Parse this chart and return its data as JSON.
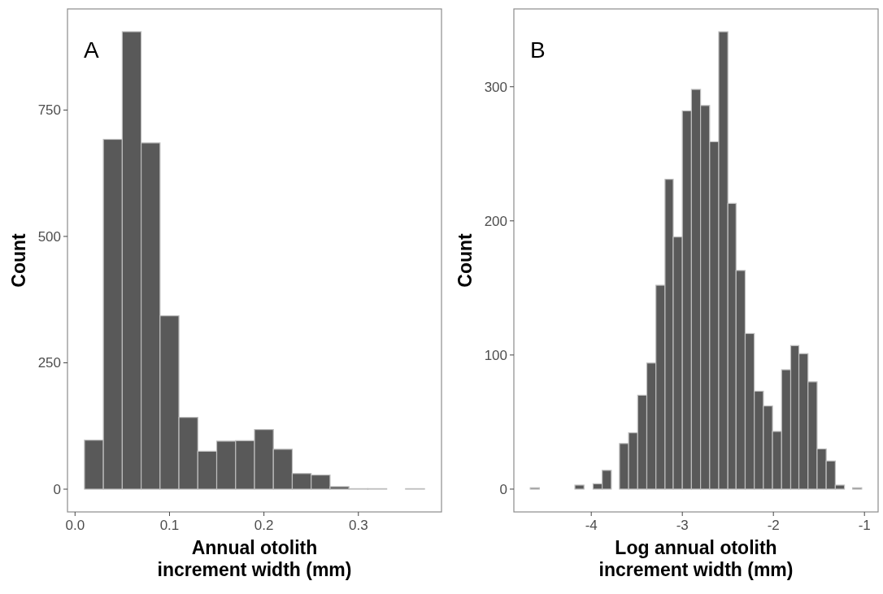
{
  "chart_data": [
    {
      "type": "histogram",
      "ylabel": "Count",
      "xlabel": "Annual otolith\nincrement width (mm)",
      "annotations": [
        "A"
      ],
      "color": "#595959",
      "grid": false,
      "bins": [
        0.01,
        0.03,
        0.05,
        0.07,
        0.09,
        0.11,
        0.13,
        0.15,
        0.17,
        0.19,
        0.21,
        0.23,
        0.25,
        0.27,
        0.29,
        0.31,
        0.33,
        0.35,
        0.37
      ],
      "values": [
        97,
        692,
        905,
        685,
        343,
        142,
        75,
        95,
        96,
        118,
        79,
        31,
        28,
        5,
        1,
        1,
        0,
        1
      ],
      "xlim": [
        -0.008,
        0.388
      ],
      "ylim": [
        -45,
        950
      ],
      "xticks": [
        {
          "value": 0,
          "label": "0.0"
        },
        0.1,
        0.2,
        0.3
      ],
      "yticks": [
        0,
        250,
        500,
        750
      ]
    },
    {
      "type": "histogram",
      "ylabel": "Count",
      "xlabel": "Log annual otolith\nincrement width (mm)",
      "annotations": [
        "B"
      ],
      "color": "#595959",
      "grid": false,
      "bins": [
        -4.67,
        -4.57,
        -4.18,
        -4.08,
        -3.98,
        -3.88,
        -3.78,
        -3.69,
        -3.59,
        -3.49,
        -3.39,
        -3.29,
        -3.19,
        -3.1,
        -3.0,
        -2.9,
        -2.8,
        -2.7,
        -2.6,
        -2.5,
        -2.41,
        -2.31,
        -2.21,
        -2.11,
        -2.01,
        -1.91,
        -1.81,
        -1.72,
        -1.62,
        -1.52,
        -1.42,
        -1.32,
        -1.22,
        -1.13,
        -1.03
      ],
      "values": [
        1,
        0,
        3,
        0,
        4,
        14,
        0,
        34,
        42,
        70,
        94,
        152,
        231,
        188,
        282,
        298,
        286,
        259,
        341,
        213,
        163,
        116,
        73,
        62,
        43,
        89,
        107,
        101,
        80,
        30,
        21,
        3,
        0,
        1
      ],
      "xlim": [
        -4.85,
        -0.85
      ],
      "ylim": [
        -17,
        358
      ],
      "xticks": [
        -4,
        -3,
        -2,
        -1
      ],
      "yticks": [
        0,
        100,
        200,
        300
      ]
    }
  ]
}
